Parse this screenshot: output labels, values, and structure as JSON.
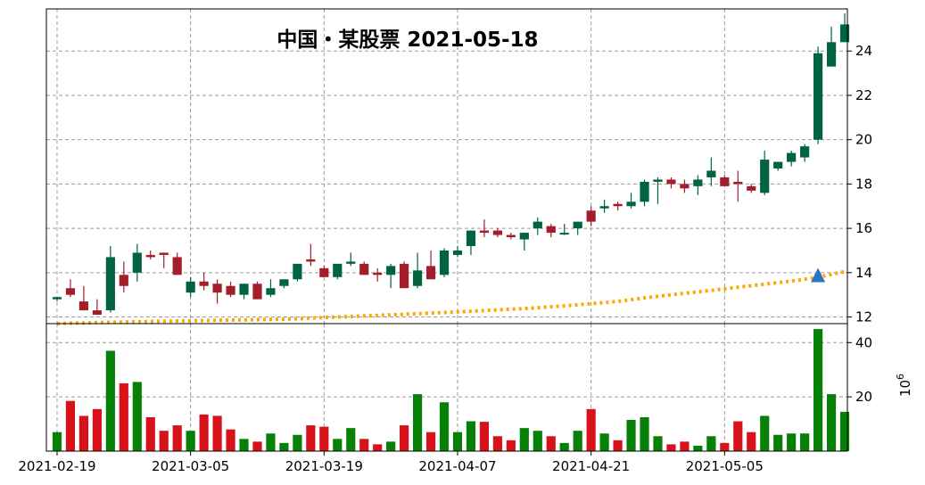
{
  "chart_data": {
    "type": "candlestick",
    "title": "中国・某股票 2021-05-18",
    "x": [
      "2021-02-19",
      "2021-02-22",
      "2021-02-23",
      "2021-02-24",
      "2021-02-25",
      "2021-02-26",
      "2021-03-01",
      "2021-03-02",
      "2021-03-03",
      "2021-03-04",
      "2021-03-05",
      "2021-03-08",
      "2021-03-09",
      "2021-03-10",
      "2021-03-11",
      "2021-03-12",
      "2021-03-15",
      "2021-03-16",
      "2021-03-17",
      "2021-03-18",
      "2021-03-19",
      "2021-03-22",
      "2021-03-23",
      "2021-03-24",
      "2021-03-25",
      "2021-03-26",
      "2021-03-29",
      "2021-03-30",
      "2021-03-31",
      "2021-04-01",
      "2021-04-02",
      "2021-04-06",
      "2021-04-07",
      "2021-04-08",
      "2021-04-09",
      "2021-04-12",
      "2021-04-13",
      "2021-04-14",
      "2021-04-15",
      "2021-04-16",
      "2021-04-19",
      "2021-04-20",
      "2021-04-21",
      "2021-04-22",
      "2021-04-23",
      "2021-04-26",
      "2021-04-27",
      "2021-04-28",
      "2021-04-29",
      "2021-04-30",
      "2021-05-06",
      "2021-05-07",
      "2021-05-10",
      "2021-05-11",
      "2021-05-12",
      "2021-05-13",
      "2021-05-14",
      "2021-05-17",
      "2021-05-18",
      "2021-05-19"
    ],
    "xticks": [
      "2021-02-19",
      "2021-03-05",
      "2021-03-19",
      "2021-04-07",
      "2021-04-21",
      "2021-05-05"
    ],
    "xtick_index": [
      0,
      10,
      20,
      30,
      40,
      50
    ],
    "open": [
      12.8,
      13.3,
      12.7,
      12.3,
      12.3,
      13.9,
      14.0,
      14.8,
      14.9,
      14.7,
      13.1,
      13.6,
      13.5,
      13.4,
      13.0,
      13.5,
      13.0,
      13.4,
      13.7,
      14.6,
      14.2,
      13.8,
      14.4,
      14.4,
      14.0,
      13.9,
      14.4,
      13.4,
      14.3,
      13.9,
      14.8,
      15.2,
      15.9,
      15.9,
      15.7,
      15.5,
      16.0,
      16.1,
      15.8,
      16.0,
      16.8,
      16.9,
      17.1,
      17.0,
      17.2,
      18.1,
      18.2,
      18.0,
      17.9,
      18.3,
      18.3,
      18.1,
      17.9,
      17.6,
      18.7,
      19.0,
      19.2,
      20.0,
      23.3,
      24.4
    ],
    "high": [
      12.9,
      13.7,
      13.4,
      12.8,
      15.2,
      14.5,
      15.3,
      15.0,
      14.9,
      14.9,
      13.8,
      14.0,
      13.7,
      13.6,
      13.5,
      13.6,
      13.7,
      13.7,
      14.4,
      15.3,
      14.3,
      14.4,
      14.9,
      14.5,
      14.2,
      14.4,
      14.5,
      14.9,
      15.0,
      15.1,
      15.2,
      15.9,
      16.4,
      16.0,
      15.8,
      15.8,
      16.5,
      16.2,
      16.2,
      16.3,
      17.0,
      17.3,
      17.2,
      17.6,
      18.2,
      18.3,
      18.3,
      18.2,
      18.4,
      19.2,
      18.4,
      18.6,
      18.0,
      19.5,
      19.0,
      19.5,
      19.8,
      24.2,
      25.1,
      25.7
    ],
    "low": [
      12.7,
      12.9,
      12.3,
      12.1,
      12.2,
      13.1,
      13.6,
      14.6,
      14.2,
      13.9,
      12.9,
      13.2,
      12.6,
      12.9,
      12.8,
      12.8,
      12.9,
      13.3,
      13.6,
      14.3,
      13.8,
      13.7,
      14.3,
      13.9,
      13.6,
      13.3,
      13.3,
      13.3,
      13.7,
      13.8,
      14.7,
      14.8,
      15.6,
      15.6,
      15.5,
      15.0,
      15.7,
      15.6,
      15.7,
      15.7,
      16.1,
      16.7,
      16.8,
      16.9,
      17.0,
      17.1,
      17.8,
      17.6,
      17.5,
      17.9,
      17.9,
      17.2,
      17.6,
      17.5,
      18.6,
      18.8,
      19.0,
      19.8,
      23.3,
      24.4
    ],
    "close": [
      12.9,
      13.0,
      12.3,
      12.1,
      14.7,
      13.4,
      14.9,
      14.7,
      14.8,
      13.9,
      13.6,
      13.4,
      13.1,
      13.0,
      13.5,
      12.8,
      13.3,
      13.7,
      14.4,
      14.5,
      13.8,
      14.4,
      14.5,
      13.9,
      13.9,
      14.3,
      13.3,
      14.1,
      13.7,
      15.0,
      15.0,
      15.9,
      15.8,
      15.7,
      15.6,
      15.8,
      16.3,
      15.8,
      15.8,
      16.3,
      16.3,
      17.0,
      17.0,
      17.2,
      18.1,
      18.2,
      18.0,
      17.8,
      18.2,
      18.6,
      17.9,
      18.0,
      17.7,
      19.1,
      19.0,
      19.4,
      19.7,
      23.9,
      24.4,
      25.2
    ],
    "volume": [
      7,
      18.5,
      13,
      15.5,
      37,
      25,
      25.5,
      12.5,
      7.5,
      9.5,
      7.5,
      13.5,
      13,
      8,
      4.5,
      3.5,
      6.5,
      3,
      6,
      9.5,
      9,
      4.5,
      8.5,
      4.5,
      2.5,
      3.5,
      9.5,
      21,
      7,
      18,
      7,
      11,
      10.8,
      5.5,
      4,
      8.5,
      7.5,
      5.5,
      3,
      7.5,
      15.5,
      6.5,
      4,
      11.5,
      12.5,
      5.5,
      2.5,
      3.5,
      2,
      5.5,
      3,
      11,
      7,
      13,
      6,
      6.5,
      6.5,
      45,
      21,
      14.5
    ],
    "ma_line": [
      11.7,
      11.72,
      11.73,
      11.75,
      11.76,
      11.77,
      11.78,
      11.8,
      11.81,
      11.82,
      11.83,
      11.84,
      11.85,
      11.86,
      11.87,
      11.88,
      11.89,
      11.9,
      11.92,
      11.95,
      11.98,
      12.0,
      12.02,
      12.05,
      12.07,
      12.1,
      12.12,
      12.15,
      12.18,
      12.2,
      12.23,
      12.26,
      12.29,
      12.32,
      12.35,
      12.38,
      12.42,
      12.46,
      12.5,
      12.55,
      12.6,
      12.65,
      12.7,
      12.78,
      12.86,
      12.93,
      13.0,
      13.07,
      13.13,
      13.2,
      13.27,
      13.34,
      13.41,
      13.48,
      13.55,
      13.62,
      13.7,
      13.8,
      13.92,
      14.05
    ],
    "marker": {
      "index": 57,
      "value": 13.85,
      "shape": "triangle-up",
      "color": "#2b74c6"
    },
    "price_ylim": [
      11.7,
      25.9
    ],
    "price_yticks": [
      12,
      14,
      16,
      18,
      20,
      22,
      24
    ],
    "volume_ylim": [
      0,
      47
    ],
    "volume_yticks": [
      20,
      40
    ],
    "volume_scale_label": "10",
    "volume_scale_exp": "6",
    "colors": {
      "up_candle": "#006440",
      "down_candle": "#a31d2a",
      "up_volume": "#068006",
      "down_volume": "#d7121b",
      "ma": "#ffa500"
    },
    "grid": true
  }
}
